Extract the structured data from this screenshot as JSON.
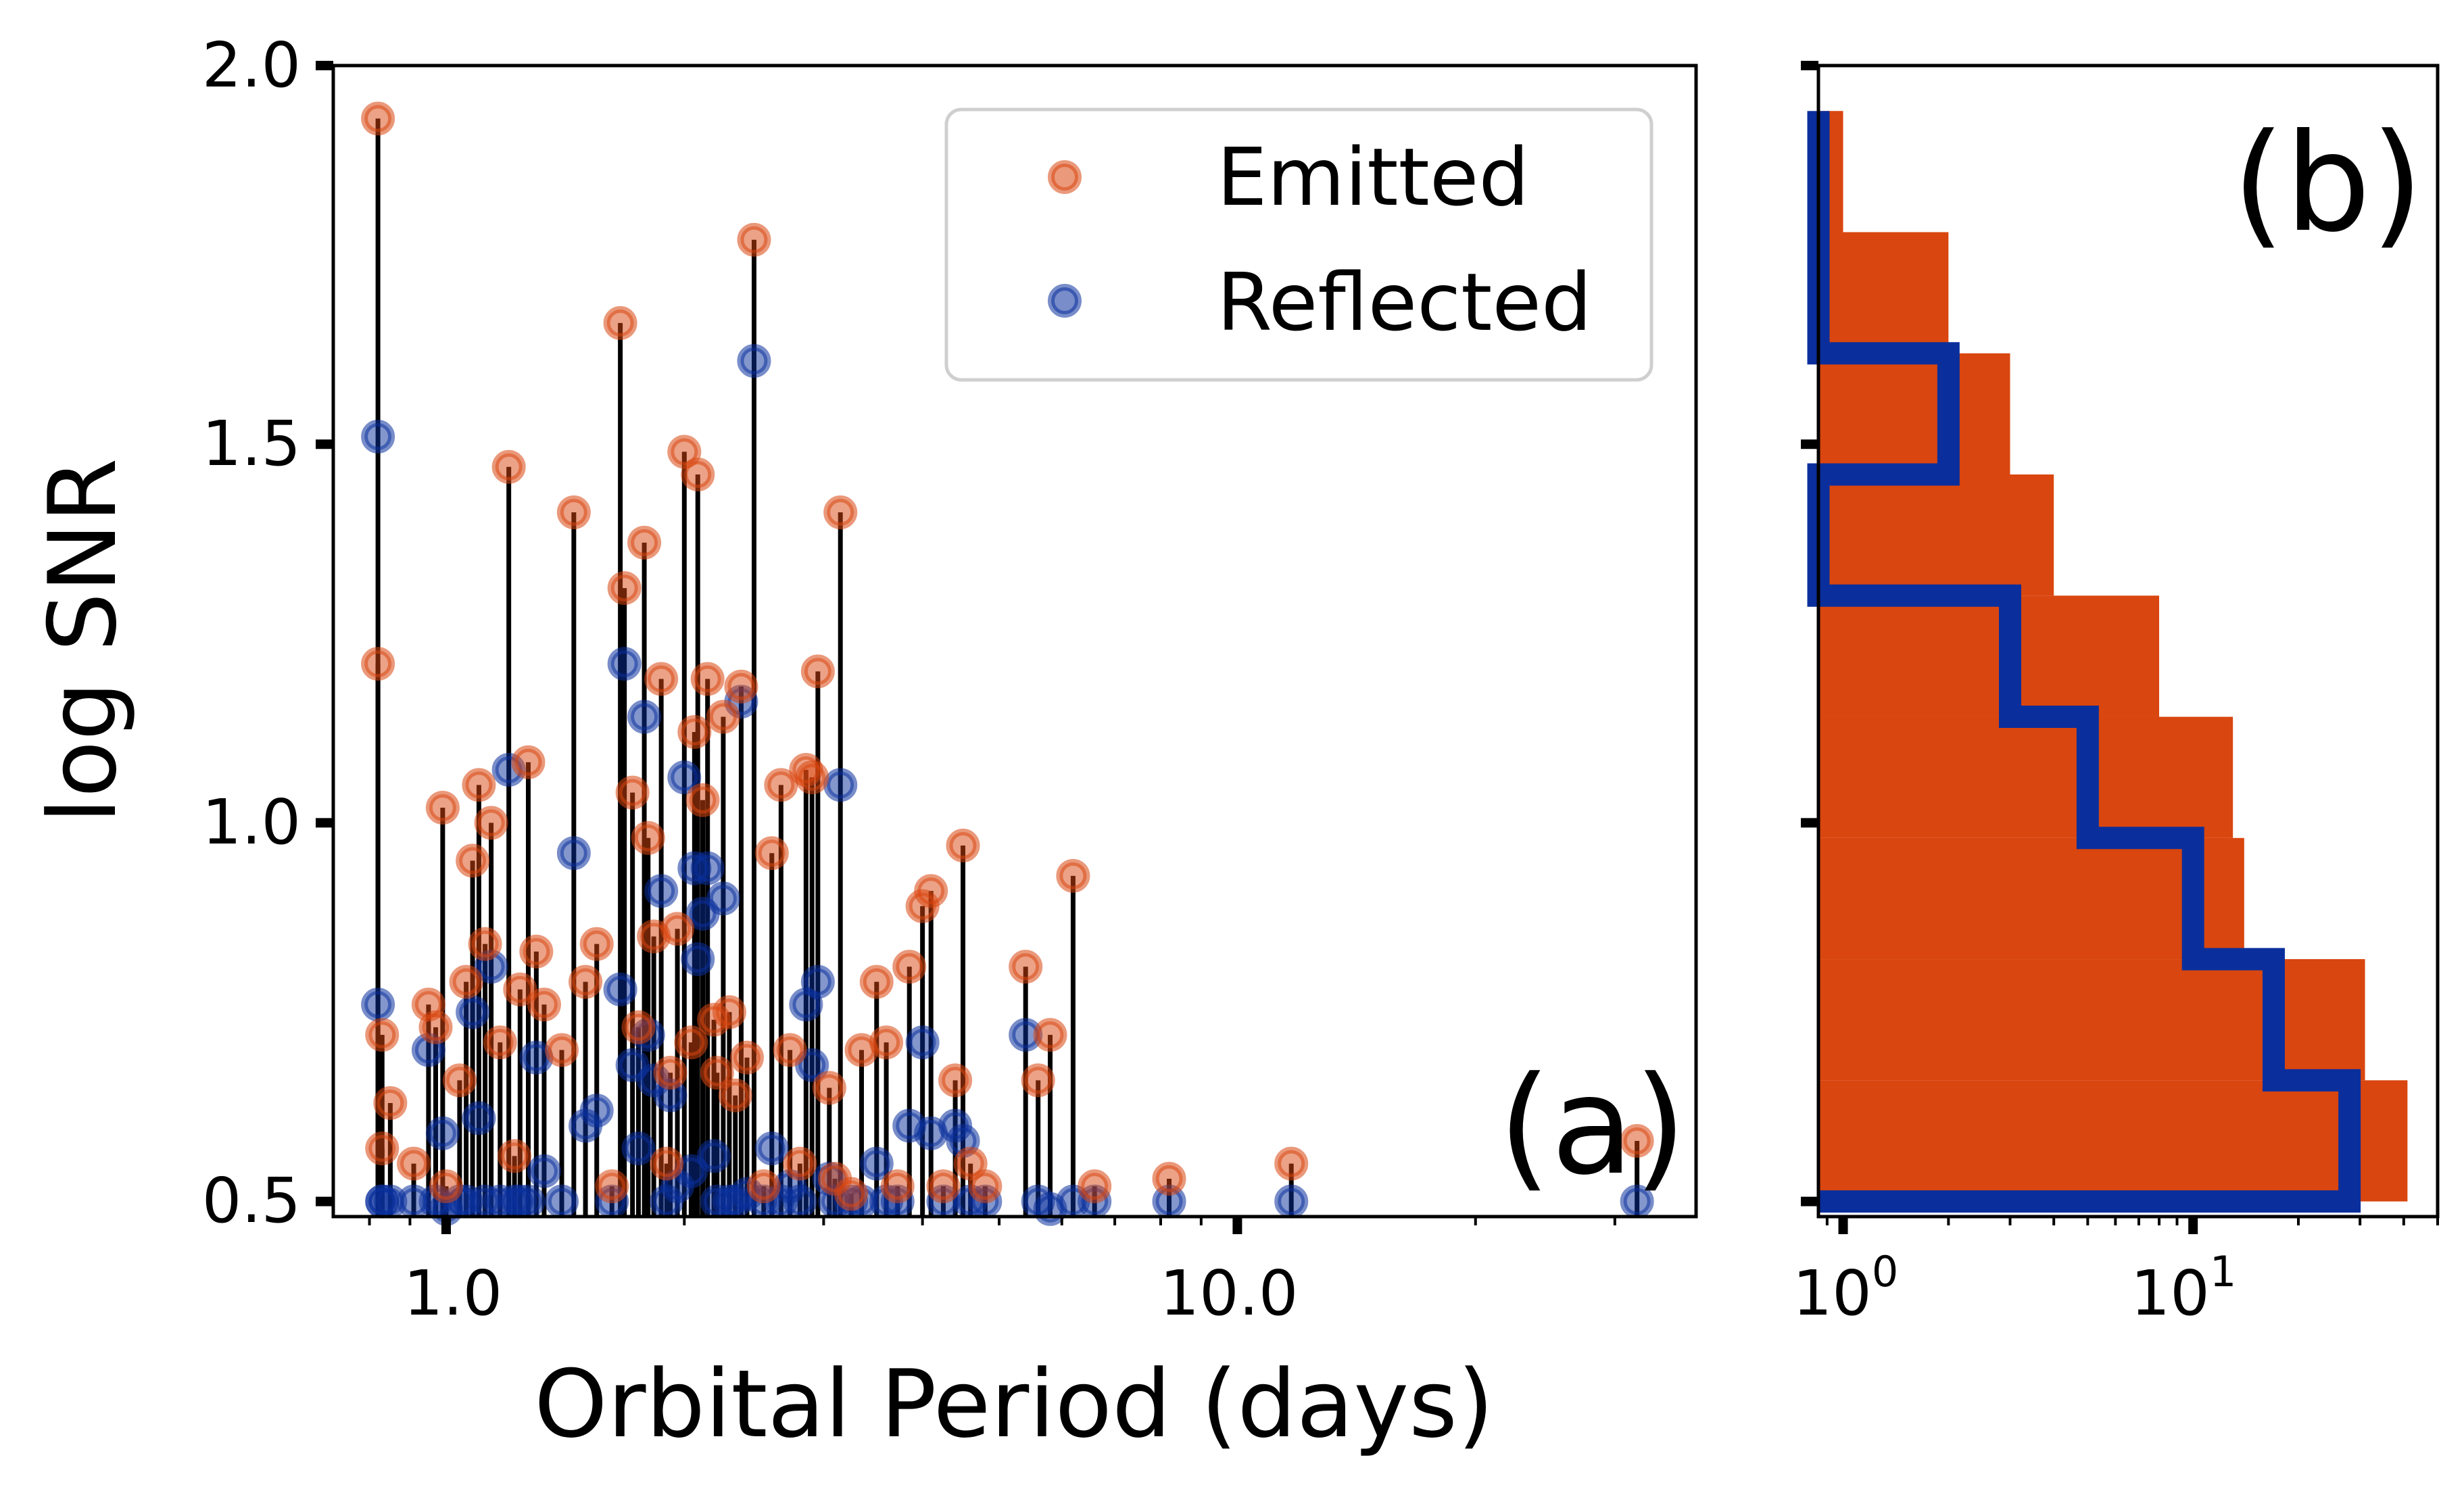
{
  "colors": {
    "emitted": "#d9460f",
    "reflected": "#0a2f9c",
    "stem": "#000000",
    "hist_fill": "#d9460f",
    "hist_edge": "#0a2f9c"
  },
  "legend": {
    "emitted": "Emitted",
    "reflected": "Reflected",
    "placement": "top-right"
  },
  "chart_data": [
    {
      "type": "scatter",
      "panel_label": "(a)",
      "xlabel": "Orbital Period (days)",
      "ylabel": "log SNR",
      "xscale": "log",
      "xlim": [
        0.72,
        38
      ],
      "ylim": [
        0.48,
        2.0
      ],
      "xticks": [
        1.0,
        10.0
      ],
      "xtick_labels": [
        "1.0",
        "10.0"
      ],
      "yticks": [
        0.5,
        1.0,
        1.5,
        2.0
      ],
      "ytick_labels": [
        "0.5",
        "1.0",
        "1.5",
        "2.0"
      ],
      "legend_placement": "top-right",
      "series": [
        {
          "name": "Emitted",
          "marker": "circle"
        },
        {
          "name": "Reflected",
          "marker": "circle"
        }
      ],
      "pairs": [
        [
          0.82,
          1.93,
          1.51
        ],
        [
          0.82,
          1.21,
          0.76
        ],
        [
          0.83,
          0.72,
          0.5
        ],
        [
          0.85,
          0.63,
          0.5
        ],
        [
          0.83,
          0.57,
          0.5
        ],
        [
          0.91,
          0.55,
          0.5
        ],
        [
          0.95,
          0.76,
          0.7
        ],
        [
          0.97,
          0.73,
          0.5
        ],
        [
          0.99,
          1.02,
          0.59
        ],
        [
          1.0,
          0.52,
          0.49
        ],
        [
          1.04,
          0.66,
          0.5
        ],
        [
          1.06,
          0.79,
          0.5
        ],
        [
          1.08,
          0.95,
          0.75
        ],
        [
          1.1,
          1.05,
          0.61
        ],
        [
          1.12,
          0.84,
          0.5
        ],
        [
          1.14,
          1.0,
          0.81
        ],
        [
          1.17,
          0.71,
          0.5
        ],
        [
          1.2,
          1.47,
          1.07
        ],
        [
          1.22,
          0.56,
          0.5
        ],
        [
          1.24,
          0.78,
          0.5
        ],
        [
          1.27,
          1.08,
          0.5
        ],
        [
          1.3,
          0.83,
          0.69
        ],
        [
          1.33,
          0.76,
          0.54
        ],
        [
          1.4,
          0.7,
          0.5
        ],
        [
          1.45,
          1.41,
          0.96
        ],
        [
          1.5,
          0.79,
          0.6
        ],
        [
          1.55,
          0.84,
          0.62
        ],
        [
          1.62,
          0.52,
          0.5
        ],
        [
          1.66,
          1.66,
          0.78
        ],
        [
          1.68,
          1.31,
          1.21
        ],
        [
          1.72,
          1.04,
          0.68
        ],
        [
          1.75,
          0.73,
          0.57
        ],
        [
          1.78,
          1.37,
          1.14
        ],
        [
          1.8,
          0.98,
          0.72
        ],
        [
          1.83,
          0.85,
          0.66
        ],
        [
          1.87,
          1.19,
          0.91
        ],
        [
          1.9,
          0.55,
          0.5
        ],
        [
          1.92,
          0.67,
          0.64
        ],
        [
          1.96,
          0.86,
          0.52
        ],
        [
          2.0,
          1.49,
          1.06
        ],
        [
          2.04,
          0.71,
          0.54
        ],
        [
          2.06,
          1.12,
          0.94
        ],
        [
          2.08,
          1.46,
          0.82
        ],
        [
          2.11,
          1.03,
          0.88
        ],
        [
          2.14,
          1.19,
          0.94
        ],
        [
          2.18,
          0.74,
          0.56
        ],
        [
          2.2,
          0.67,
          0.5
        ],
        [
          2.24,
          1.14,
          0.9
        ],
        [
          2.28,
          0.75,
          0.5
        ],
        [
          2.32,
          0.64,
          0.5
        ],
        [
          2.36,
          1.18,
          1.16
        ],
        [
          2.4,
          0.69,
          0.51
        ],
        [
          2.45,
          1.77,
          1.61
        ],
        [
          2.52,
          0.52,
          0.5
        ],
        [
          2.58,
          0.96,
          0.57
        ],
        [
          2.65,
          1.05,
          0.5
        ],
        [
          2.72,
          0.7,
          0.52
        ],
        [
          2.8,
          0.55,
          0.5
        ],
        [
          2.85,
          1.07,
          0.76
        ],
        [
          2.9,
          1.06,
          0.68
        ],
        [
          2.95,
          1.2,
          0.79
        ],
        [
          3.05,
          0.65,
          0.53
        ],
        [
          3.1,
          0.53,
          0.5
        ],
        [
          3.15,
          1.41,
          1.05
        ],
        [
          3.25,
          0.51,
          0.5
        ],
        [
          3.35,
          0.7,
          0.5
        ],
        [
          3.5,
          0.79,
          0.55
        ],
        [
          3.6,
          0.71,
          0.5
        ],
        [
          3.72,
          0.52,
          0.5
        ],
        [
          3.85,
          0.81,
          0.6
        ],
        [
          4.0,
          0.89,
          0.71
        ],
        [
          4.1,
          0.91,
          0.59
        ],
        [
          4.25,
          0.52,
          0.5
        ],
        [
          4.4,
          0.66,
          0.6
        ],
        [
          4.5,
          0.97,
          0.58
        ],
        [
          4.6,
          0.55,
          0.5
        ],
        [
          4.8,
          0.52,
          0.5
        ],
        [
          5.4,
          0.81,
          0.72
        ],
        [
          5.6,
          0.66,
          0.5
        ],
        [
          5.8,
          0.72,
          0.49
        ],
        [
          6.2,
          0.93,
          0.5
        ],
        [
          6.6,
          0.52,
          0.5
        ],
        [
          8.2,
          0.53,
          0.5
        ],
        [
          11.7,
          0.55,
          0.5
        ],
        [
          32.0,
          0.58,
          0.5
        ]
      ]
    },
    {
      "type": "bar",
      "orientation": "horizontal",
      "panel_label": "(b)",
      "xscale": "log",
      "xlim": [
        0.85,
        50
      ],
      "xticks": [
        1,
        10
      ],
      "xtick_base": "10",
      "xtick_exponents": [
        "0",
        "1"
      ],
      "ylim": [
        0.48,
        2.0
      ],
      "bins": [
        [
          0.5,
          0.66
        ],
        [
          0.66,
          0.82
        ],
        [
          0.82,
          0.98
        ],
        [
          0.98,
          1.14
        ],
        [
          1.14,
          1.3
        ],
        [
          1.3,
          1.46
        ],
        [
          1.46,
          1.62
        ],
        [
          1.62,
          1.78
        ],
        [
          1.78,
          1.94
        ]
      ],
      "series": [
        {
          "name": "Emitted",
          "style": "filled",
          "values": [
            41,
            31,
            14,
            13,
            8,
            4,
            3,
            2,
            1
          ]
        },
        {
          "name": "Reflected",
          "style": "step",
          "values": [
            28,
            17,
            10,
            5,
            3,
            0,
            2,
            0,
            0
          ]
        }
      ]
    }
  ]
}
